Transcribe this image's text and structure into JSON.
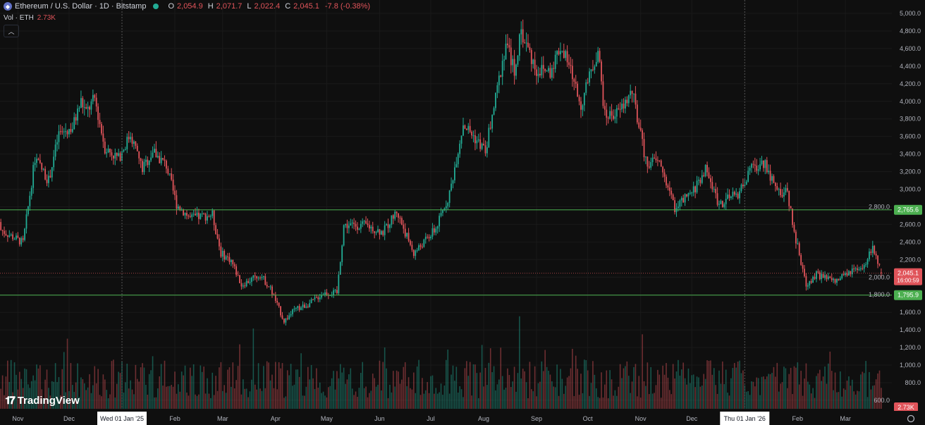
{
  "header": {
    "symbol_title": "Ethereum / U.S. Dollar · 1D · Bitstamp",
    "icon": "ethereum-icon",
    "ohlc": {
      "o_label": "O",
      "o": "2,054.9",
      "h_label": "H",
      "h": "2,071.7",
      "l_label": "L",
      "l": "2,022.4",
      "c_label": "C",
      "c": "2,045.1",
      "change": "-7.8 (-0.38%)"
    },
    "volume_label": "Vol · ETH",
    "volume_value": "2.73K",
    "collapse_icon": "chevron-up-icon"
  },
  "logo": "TradingView",
  "colors": {
    "background": "#0f0f0f",
    "up": "#22ab94",
    "down": "#e0545a",
    "level_line": "#4caf50",
    "price_line": "#e0545a"
  },
  "chart_data": {
    "type": "candlestick",
    "symbol": "ETH/USD",
    "interval": "1D",
    "y_axis": {
      "side": "right",
      "ylim": [
        540,
        5080
      ],
      "ticks": [
        "5,000.0",
        "4,800.0",
        "4,600.0",
        "4,400.0",
        "4,200.0",
        "4,000.0",
        "3,800.0",
        "3,600.0",
        "3,400.0",
        "3,200.0",
        "3,000.0",
        "2,800.0",
        "2,600.0",
        "2,400.0",
        "2,200.0",
        "2,000.0",
        "1,800.0",
        "1,600.0",
        "1,400.0",
        "1,200.0",
        "1,000.0",
        "800.0",
        "600.0"
      ],
      "tick_values": [
        5000,
        4800,
        4600,
        4400,
        4200,
        4000,
        3800,
        3600,
        3400,
        3200,
        3000,
        2800,
        2600,
        2400,
        2200,
        2000,
        1800,
        1600,
        1400,
        1200,
        1000,
        800,
        600
      ]
    },
    "x_axis": {
      "ticks": [
        {
          "label": "Nov",
          "date": "2024-11-01"
        },
        {
          "label": "Dec",
          "date": "2024-12-01"
        },
        {
          "label": "Feb",
          "date": "2025-02-01"
        },
        {
          "label": "Mar",
          "date": "2025-03-01"
        },
        {
          "label": "Apr",
          "date": "2025-04-01"
        },
        {
          "label": "May",
          "date": "2025-05-01"
        },
        {
          "label": "Jun",
          "date": "2025-06-01"
        },
        {
          "label": "Jul",
          "date": "2025-07-01"
        },
        {
          "label": "Aug",
          "date": "2025-08-01"
        },
        {
          "label": "Sep",
          "date": "2025-09-01"
        },
        {
          "label": "Oct",
          "date": "2025-10-01"
        },
        {
          "label": "Nov",
          "date": "2025-11-01"
        },
        {
          "label": "Dec",
          "date": "2025-12-01"
        },
        {
          "label": "Feb",
          "date": "2026-02-01"
        },
        {
          "label": "Mar",
          "date": "2026-03-01"
        }
      ],
      "highlighted": [
        {
          "label": "Wed 01 Jan '25",
          "date": "2025-01-01"
        },
        {
          "label": "Thu 01 Jan '26",
          "date": "2026-01-01"
        }
      ]
    },
    "horizontal_lines": [
      {
        "value": 2765.6,
        "label": "2,765.6",
        "color": "#4caf50"
      },
      {
        "value": 1795.9,
        "label": "1,795.9",
        "color": "#4caf50"
      }
    ],
    "last_price": {
      "value": 2045.1,
      "label": "2,045.1",
      "countdown": "16:00:59"
    },
    "last_volume_label": "2.73K",
    "approx_closes": [
      [
        "2024-10-14",
        2627
      ],
      [
        "2024-11-04",
        2390
      ],
      [
        "2024-11-11",
        3350
      ],
      [
        "2024-11-19",
        3100
      ],
      [
        "2024-11-25",
        3630
      ],
      [
        "2024-12-03",
        3700
      ],
      [
        "2024-12-08",
        4000
      ],
      [
        "2024-12-11",
        3870
      ],
      [
        "2024-12-16",
        4030
      ],
      [
        "2024-12-22",
        3470
      ],
      [
        "2024-12-30",
        3350
      ],
      [
        "2025-01-06",
        3630
      ],
      [
        "2025-01-13",
        3230
      ],
      [
        "2025-01-19",
        3430
      ],
      [
        "2025-01-27",
        3270
      ],
      [
        "2025-02-02",
        2830
      ],
      [
        "2025-02-10",
        2670
      ],
      [
        "2025-02-23",
        2710
      ],
      [
        "2025-02-28",
        2270
      ],
      [
        "2025-03-06",
        2190
      ],
      [
        "2025-03-12",
        1910
      ],
      [
        "2025-03-23",
        2030
      ],
      [
        "2025-03-29",
        1870
      ],
      [
        "2025-04-06",
        1500
      ],
      [
        "2025-04-12",
        1625
      ],
      [
        "2025-04-21",
        1700
      ],
      [
        "2025-04-29",
        1820
      ],
      [
        "2025-05-07",
        1820
      ],
      [
        "2025-05-11",
        2590
      ],
      [
        "2025-05-24",
        2590
      ],
      [
        "2025-06-03",
        2510
      ],
      [
        "2025-06-11",
        2750
      ],
      [
        "2025-06-21",
        2270
      ],
      [
        "2025-07-04",
        2550
      ],
      [
        "2025-07-12",
        2950
      ],
      [
        "2025-07-20",
        3750
      ],
      [
        "2025-08-02",
        3430
      ],
      [
        "2025-08-08",
        4030
      ],
      [
        "2025-08-14",
        4670
      ],
      [
        "2025-08-19",
        4350
      ],
      [
        "2025-08-23",
        4790
      ],
      [
        "2025-09-01",
        4350
      ],
      [
        "2025-09-09",
        4350
      ],
      [
        "2025-09-15",
        4630
      ],
      [
        "2025-09-21",
        4350
      ],
      [
        "2025-09-27",
        3950
      ],
      [
        "2025-10-07",
        4590
      ],
      [
        "2025-10-11",
        3830
      ],
      [
        "2025-10-19",
        3870
      ],
      [
        "2025-10-27",
        4110
      ],
      [
        "2025-11-04",
        3310
      ],
      [
        "2025-11-12",
        3310
      ],
      [
        "2025-11-21",
        2790
      ],
      [
        "2025-12-01",
        2950
      ],
      [
        "2025-12-09",
        3230
      ],
      [
        "2025-12-17",
        2830
      ],
      [
        "2025-12-28",
        2950
      ],
      [
        "2026-01-05",
        3230
      ],
      [
        "2026-01-13",
        3310
      ],
      [
        "2026-01-19",
        2990
      ],
      [
        "2026-01-26",
        2950
      ],
      [
        "2026-01-31",
        2430
      ],
      [
        "2026-02-06",
        1910
      ],
      [
        "2026-02-12",
        2030
      ],
      [
        "2026-02-23",
        1950
      ],
      [
        "2026-03-05",
        2070
      ],
      [
        "2026-03-11",
        2070
      ],
      [
        "2026-03-17",
        2350
      ],
      [
        "2026-03-22",
        2045.1
      ]
    ]
  },
  "settings_icon": "gear-icon"
}
